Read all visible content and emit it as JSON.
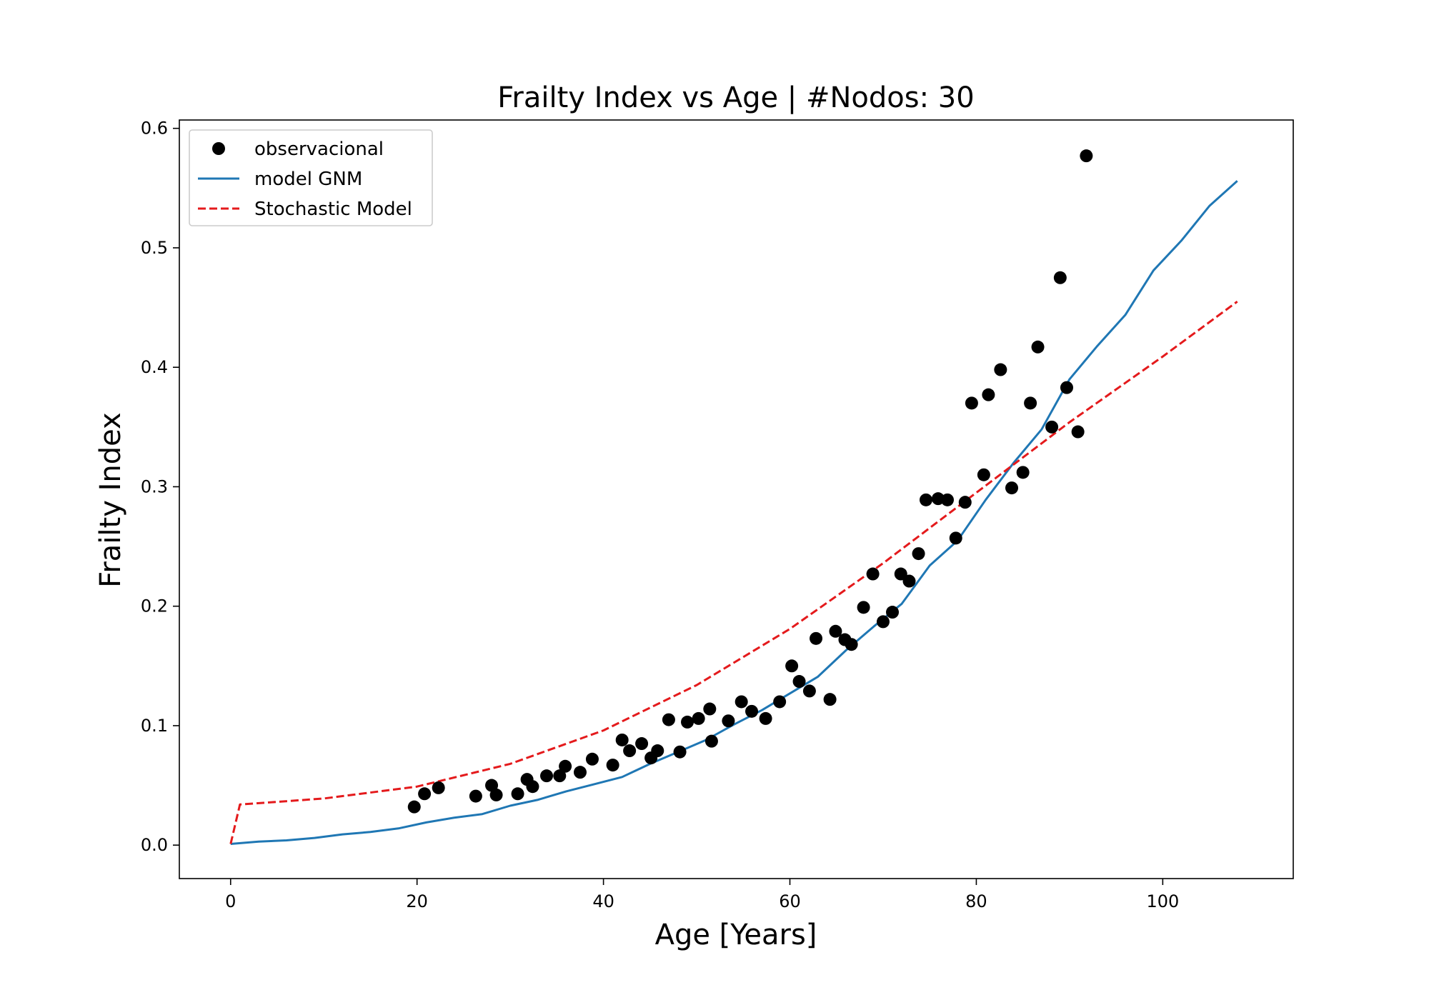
{
  "chart_data": {
    "type": "scatter",
    "title": "Frailty Index vs Age | #Nodos: 30",
    "xlabel": "Age [Years]",
    "ylabel": "Frailty Index",
    "xlim": [
      -5.5,
      114
    ],
    "ylim": [
      -0.028,
      0.607
    ],
    "x_ticks": [
      0,
      20,
      40,
      60,
      80,
      100
    ],
    "y_ticks": [
      0.0,
      0.1,
      0.2,
      0.3,
      0.4,
      0.5,
      0.6
    ],
    "x_tick_labels": [
      "0",
      "20",
      "40",
      "60",
      "80",
      "100"
    ],
    "y_tick_labels": [
      "0.0",
      "0.1",
      "0.2",
      "0.3",
      "0.4",
      "0.5",
      "0.6"
    ],
    "grid": false,
    "legend": {
      "placement": "top-left"
    },
    "series": [
      {
        "name": "observacional",
        "kind": "scatter",
        "color": "#000000",
        "x": [
          19.7,
          20.8,
          22.3,
          26.3,
          28.0,
          28.5,
          30.8,
          31.8,
          32.4,
          33.9,
          35.3,
          35.9,
          37.5,
          38.8,
          41.0,
          42.0,
          42.8,
          44.1,
          45.1,
          45.8,
          47.0,
          48.2,
          49.0,
          50.2,
          51.4,
          51.6,
          53.4,
          54.8,
          55.9,
          57.4,
          58.9,
          60.2,
          61.0,
          62.1,
          62.8,
          64.3,
          64.9,
          65.9,
          66.6,
          67.9,
          68.9,
          70.0,
          71.0,
          71.9,
          72.8,
          73.8,
          74.6,
          75.9,
          76.9,
          77.8,
          78.8,
          79.5,
          80.8,
          81.3,
          82.6,
          83.8,
          85.0,
          85.8,
          86.6,
          88.1,
          89.0,
          89.7,
          90.9,
          91.8
        ],
        "y": [
          0.032,
          0.043,
          0.048,
          0.041,
          0.05,
          0.042,
          0.043,
          0.055,
          0.049,
          0.058,
          0.058,
          0.066,
          0.061,
          0.072,
          0.067,
          0.088,
          0.079,
          0.085,
          0.073,
          0.079,
          0.105,
          0.078,
          0.103,
          0.106,
          0.114,
          0.087,
          0.104,
          0.12,
          0.112,
          0.106,
          0.12,
          0.15,
          0.137,
          0.129,
          0.173,
          0.122,
          0.179,
          0.172,
          0.168,
          0.199,
          0.227,
          0.187,
          0.195,
          0.227,
          0.221,
          0.244,
          0.289,
          0.29,
          0.289,
          0.257,
          0.287,
          0.37,
          0.31,
          0.377,
          0.398,
          0.299,
          0.312,
          0.37,
          0.417,
          0.35,
          0.475,
          0.383,
          0.346,
          0.577
        ]
      },
      {
        "name": "model GNM",
        "kind": "line",
        "color": "#1f77b4",
        "style": "solid",
        "x": [
          0,
          3,
          6,
          9,
          12,
          15,
          18,
          21,
          24,
          27,
          30,
          33,
          36,
          39,
          42,
          45,
          48,
          51,
          54,
          57,
          60,
          63,
          66,
          69,
          72,
          75,
          78,
          81,
          84,
          87,
          90,
          93,
          96,
          99,
          102,
          105,
          108
        ],
        "y": [
          0.001,
          0.003,
          0.004,
          0.006,
          0.009,
          0.011,
          0.014,
          0.019,
          0.023,
          0.026,
          0.033,
          0.038,
          0.045,
          0.051,
          0.057,
          0.068,
          0.078,
          0.088,
          0.101,
          0.113,
          0.127,
          0.141,
          0.163,
          0.183,
          0.202,
          0.234,
          0.255,
          0.289,
          0.32,
          0.348,
          0.39,
          0.418,
          0.444,
          0.481,
          0.506,
          0.535,
          0.556
        ]
      },
      {
        "name": "Stochastic Model",
        "kind": "line",
        "color": "#e41a1c",
        "style": "dashed",
        "x": [
          0,
          1,
          10,
          20,
          30,
          40,
          50,
          60,
          70,
          80,
          90,
          100,
          108
        ],
        "y": [
          0.001,
          0.034,
          0.039,
          0.049,
          0.068,
          0.096,
          0.134,
          0.181,
          0.236,
          0.295,
          0.354,
          0.409,
          0.455
        ]
      }
    ]
  }
}
